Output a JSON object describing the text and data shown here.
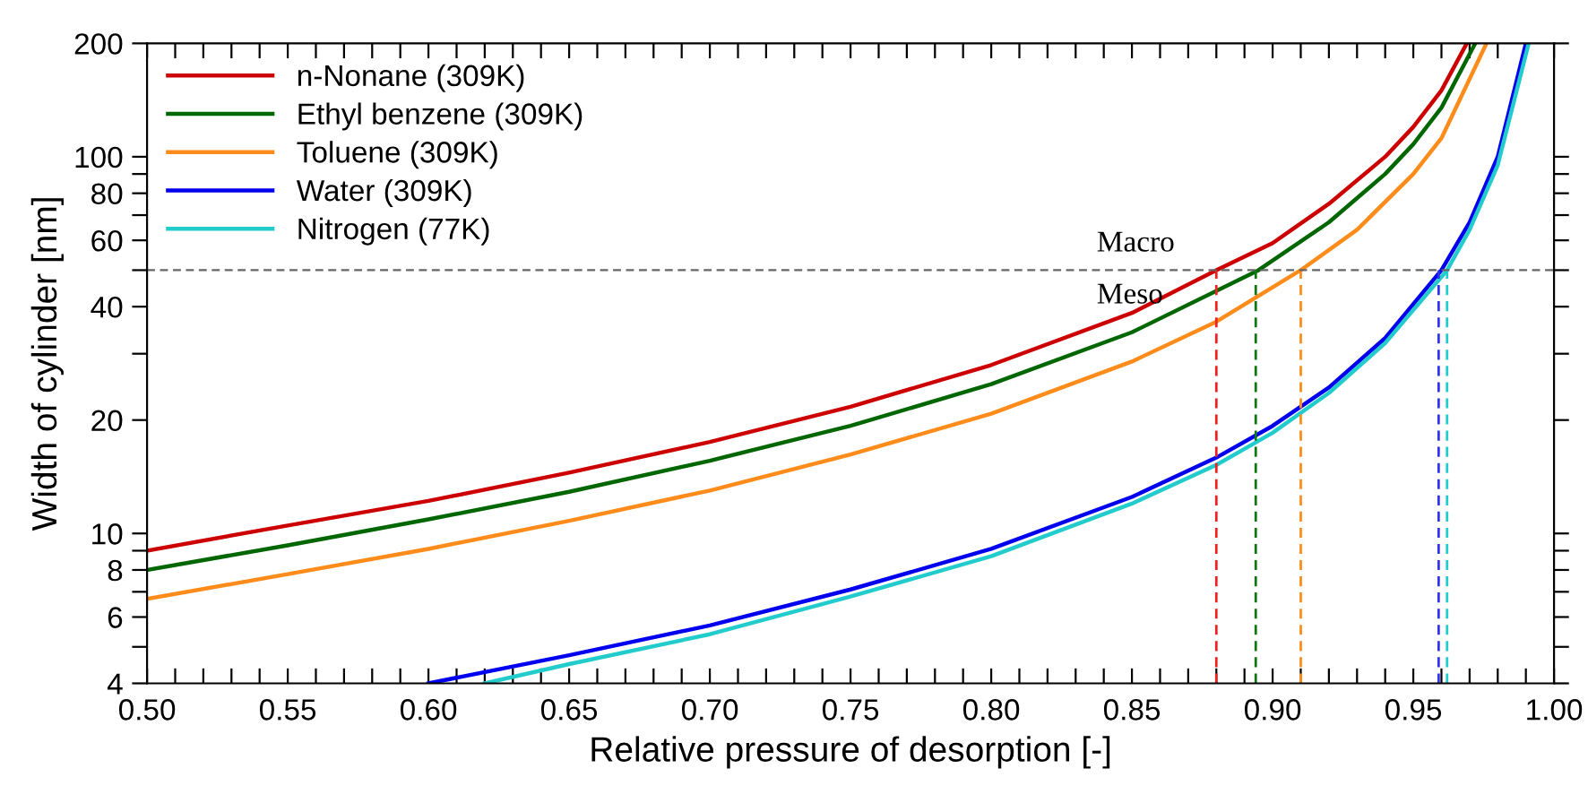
{
  "chart_data": {
    "type": "line",
    "xlabel": "Relative pressure of desorption [-]",
    "ylabel": "Width of cylinder [nm]",
    "log": "y",
    "xlim": [
      0.5,
      1.0
    ],
    "ylim": [
      4,
      200
    ],
    "xticks": [
      {
        "value": 0.5,
        "label": "0.50"
      },
      {
        "value": 0.51,
        "label": null
      },
      {
        "value": 0.52,
        "label": null
      },
      {
        "value": 0.53,
        "label": null
      },
      {
        "value": 0.54,
        "label": null
      },
      {
        "value": 0.55,
        "label": "0.55"
      },
      {
        "value": 0.56,
        "label": null
      },
      {
        "value": 0.57,
        "label": null
      },
      {
        "value": 0.58,
        "label": null
      },
      {
        "value": 0.59,
        "label": null
      },
      {
        "value": 0.6,
        "label": "0.60"
      },
      {
        "value": 0.61,
        "label": null
      },
      {
        "value": 0.62,
        "label": null
      },
      {
        "value": 0.63,
        "label": null
      },
      {
        "value": 0.64,
        "label": null
      },
      {
        "value": 0.65,
        "label": "0.65"
      },
      {
        "value": 0.66,
        "label": null
      },
      {
        "value": 0.67,
        "label": null
      },
      {
        "value": 0.68,
        "label": null
      },
      {
        "value": 0.69,
        "label": null
      },
      {
        "value": 0.7,
        "label": "0.70"
      },
      {
        "value": 0.71,
        "label": null
      },
      {
        "value": 0.72,
        "label": null
      },
      {
        "value": 0.73,
        "label": null
      },
      {
        "value": 0.74,
        "label": null
      },
      {
        "value": 0.75,
        "label": "0.75"
      },
      {
        "value": 0.76,
        "label": null
      },
      {
        "value": 0.77,
        "label": null
      },
      {
        "value": 0.78,
        "label": null
      },
      {
        "value": 0.79,
        "label": null
      },
      {
        "value": 0.8,
        "label": "0.80"
      },
      {
        "value": 0.81,
        "label": null
      },
      {
        "value": 0.82,
        "label": null
      },
      {
        "value": 0.83,
        "label": null
      },
      {
        "value": 0.84,
        "label": null
      },
      {
        "value": 0.85,
        "label": "0.85"
      },
      {
        "value": 0.86,
        "label": null
      },
      {
        "value": 0.87,
        "label": null
      },
      {
        "value": 0.88,
        "label": null
      },
      {
        "value": 0.89,
        "label": null
      },
      {
        "value": 0.9,
        "label": "0.90"
      },
      {
        "value": 0.91,
        "label": null
      },
      {
        "value": 0.92,
        "label": null
      },
      {
        "value": 0.93,
        "label": null
      },
      {
        "value": 0.94,
        "label": null
      },
      {
        "value": 0.95,
        "label": "0.95"
      },
      {
        "value": 0.96,
        "label": null
      },
      {
        "value": 0.97,
        "label": null
      },
      {
        "value": 0.98,
        "label": null
      },
      {
        "value": 0.99,
        "label": null
      },
      {
        "value": 1.0,
        "label": "1.00"
      }
    ],
    "yticks": [
      4,
      {
        "value": 5,
        "label": null
      },
      6,
      {
        "value": 7,
        "label": null
      },
      8,
      {
        "value": 9,
        "label": null
      },
      10,
      20,
      {
        "value": 30,
        "label": null
      },
      40,
      {
        "value": 50,
        "label": null
      },
      60,
      {
        "value": 70,
        "label": null
      },
      80,
      {
        "value": 90,
        "label": null
      },
      100,
      200
    ],
    "legend": "top left",
    "line_style": "solid",
    "grid": false,
    "series": [
      {
        "name": "n-Nonane (309K)",
        "color": "#cc0000",
        "x": [
          0.5,
          0.55,
          0.6,
          0.65,
          0.7,
          0.75,
          0.8,
          0.85,
          0.88,
          0.9,
          0.92,
          0.94,
          0.95,
          0.96,
          0.969
        ],
        "values": [
          9.0,
          10.5,
          12.2,
          14.5,
          17.5,
          21.7,
          28,
          38.5,
          50,
          59,
          75,
          100,
          120,
          150,
          200
        ]
      },
      {
        "name": "Ethyl benzene (309K)",
        "color": "#006600",
        "x": [
          0.5,
          0.55,
          0.6,
          0.65,
          0.7,
          0.75,
          0.8,
          0.85,
          0.895,
          0.92,
          0.94,
          0.95,
          0.96,
          0.972
        ],
        "values": [
          8.0,
          9.3,
          10.9,
          12.9,
          15.6,
          19.3,
          24.9,
          34.2,
          50,
          67,
          90,
          108,
          135,
          200
        ]
      },
      {
        "name": "Toluene (309K)",
        "color": "#ff8c1a",
        "x": [
          0.5,
          0.55,
          0.6,
          0.65,
          0.7,
          0.75,
          0.8,
          0.85,
          0.88,
          0.91,
          0.93,
          0.95,
          0.96,
          0.976
        ],
        "values": [
          6.7,
          7.8,
          9.1,
          10.8,
          13.0,
          16.2,
          20.8,
          28.6,
          36.5,
          50,
          64,
          90,
          112,
          200
        ]
      },
      {
        "name": "Water (309K)",
        "color": "#0000ee",
        "x": [
          0.6,
          0.65,
          0.7,
          0.75,
          0.8,
          0.85,
          0.88,
          0.9,
          0.92,
          0.94,
          0.96,
          0.97,
          0.98,
          0.99
        ],
        "values": [
          4.0,
          4.75,
          5.7,
          7.1,
          9.1,
          12.5,
          15.9,
          19.3,
          24.4,
          33,
          50,
          67,
          100,
          200
        ]
      },
      {
        "name": "Nitrogen (77K)",
        "color": "#22cccc",
        "x": [
          0.62,
          0.65,
          0.7,
          0.75,
          0.8,
          0.85,
          0.88,
          0.9,
          0.92,
          0.94,
          0.962,
          0.97,
          0.98,
          0.991
        ],
        "values": [
          4.0,
          4.5,
          5.4,
          6.8,
          8.7,
          12.0,
          15.2,
          18.5,
          23.6,
          32,
          50,
          64,
          95,
          200
        ]
      },
      {
        "color": "#ee2222",
        "x": [
          0.88,
          0.88
        ],
        "values": [
          4,
          50
        ],
        "line_style": "dashed"
      },
      {
        "color": "#117711",
        "x": [
          0.894,
          0.894
        ],
        "values": [
          4,
          50
        ],
        "line_style": "dashed"
      },
      {
        "color": "#ff8c1a",
        "x": [
          0.91,
          0.91
        ],
        "values": [
          4,
          50
        ],
        "line_style": "dashed"
      },
      {
        "color": "#3333ee",
        "x": [
          0.959,
          0.959
        ],
        "values": [
          4,
          50
        ],
        "line_style": "dashed"
      },
      {
        "color": "#22cccc",
        "x": [
          0.962,
          0.962
        ],
        "values": [
          4,
          50
        ],
        "line_style": "dashed"
      }
    ],
    "ref_lines": [
      {
        "axis": "y",
        "value": 50,
        "color": "#666666",
        "line_style": "dashed"
      }
    ],
    "annotations": [
      "Macro",
      "Meso"
    ]
  }
}
